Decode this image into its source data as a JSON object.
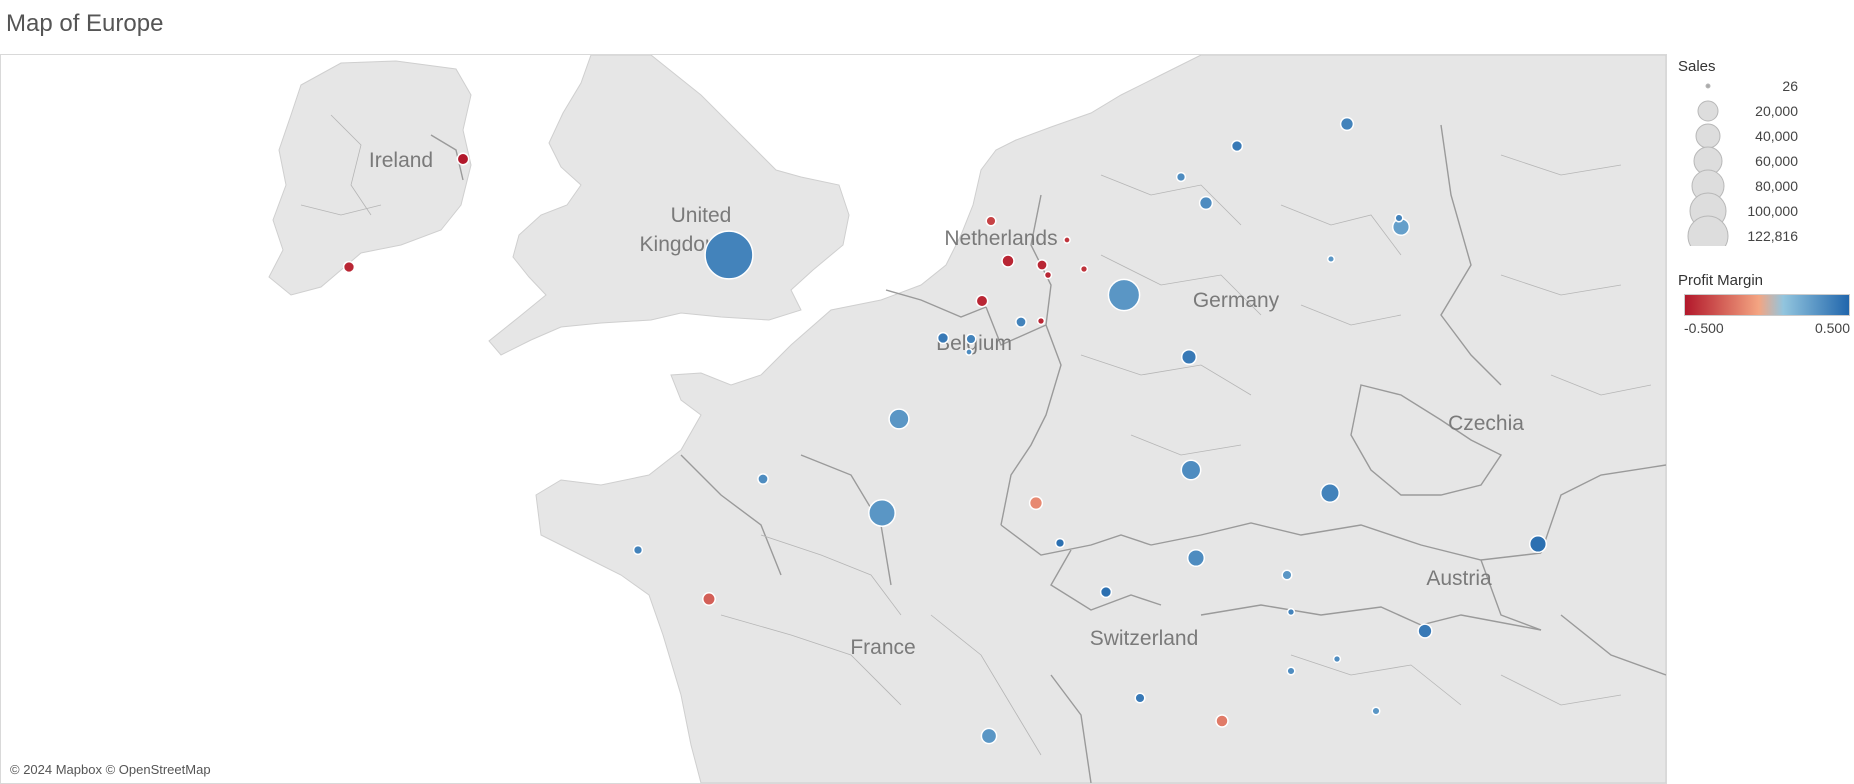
{
  "title": "Map of Europe",
  "attribution": "© 2024 Mapbox © OpenStreetMap",
  "colors": {
    "land": "#e6e6e6",
    "water": "#ffffff",
    "border": "#9a9a9a",
    "negative_strong": "#b2182b",
    "negative_light": "#f4a582",
    "positive_light": "#92c5de",
    "positive_strong": "#2166ac"
  },
  "country_labels": [
    "Ireland",
    "United Kingdom",
    "Netherlands",
    "Belgium",
    "Germany",
    "Czechia",
    "Austria",
    "Switzerland",
    "France"
  ],
  "legend": {
    "sales_title": "Sales",
    "sales_sizes": [
      "26",
      "20,000",
      "40,000",
      "60,000",
      "80,000",
      "100,000",
      "122,816"
    ],
    "profit_title": "Profit Margin",
    "profit_min": "-0.500",
    "profit_max": "0.500"
  },
  "marks": [
    {
      "sales": 122000,
      "margin": 0.35
    },
    {
      "sales": 47000,
      "margin": 0.25
    },
    {
      "sales": 32000,
      "margin": 0.25
    },
    {
      "sales": 15000,
      "margin": 0.3
    },
    {
      "sales": 16000,
      "margin": 0.25
    },
    {
      "sales": 10000,
      "margin": 0.3
    },
    {
      "sales": 13000,
      "margin": 0.35
    },
    {
      "sales": 10000,
      "margin": 0.45
    },
    {
      "sales": 10000,
      "margin": 0.2
    },
    {
      "sales": 7000,
      "margin": 0.4
    },
    {
      "sales": 6000,
      "margin": 0.4
    },
    {
      "sales": 8000,
      "margin": 0.25
    },
    {
      "sales": 5000,
      "margin": 0.35
    },
    {
      "sales": 5000,
      "margin": 0.3
    },
    {
      "sales": 5000,
      "margin": -0.1
    },
    {
      "sales": 4500,
      "margin": -0.25
    },
    {
      "sales": 4000,
      "margin": -0.15
    },
    {
      "sales": 4000,
      "margin": -0.45
    },
    {
      "sales": 3500,
      "margin": -0.45
    },
    {
      "sales": 3500,
      "margin": -0.5
    },
    {
      "sales": 3000,
      "margin": -0.45
    },
    {
      "sales": 2500,
      "margin": -0.45
    },
    {
      "sales": 2000,
      "margin": -0.35
    },
    {
      "sales": 3000,
      "margin": 0.4
    },
    {
      "sales": 3000,
      "margin": 0.45
    },
    {
      "sales": 3000,
      "margin": 0.4
    },
    {
      "sales": 2500,
      "margin": 0.35
    },
    {
      "sales": 2500,
      "margin": 0.3
    },
    {
      "sales": 2000,
      "margin": 0.25
    },
    {
      "sales": 2000,
      "margin": 0.35
    },
    {
      "sales": 2000,
      "margin": 0.4
    },
    {
      "sales": 1500,
      "margin": 0.3
    },
    {
      "sales": 1500,
      "margin": 0.45
    },
    {
      "sales": 1500,
      "margin": 0.35
    },
    {
      "sales": 800,
      "margin": 0.3
    },
    {
      "sales": 800,
      "margin": 0.35
    },
    {
      "sales": 800,
      "margin": 0.25
    },
    {
      "sales": 600,
      "margin": -0.45
    },
    {
      "sales": 500,
      "margin": -0.4
    },
    {
      "sales": 500,
      "margin": -0.45
    },
    {
      "sales": 500,
      "margin": 0.35
    },
    {
      "sales": 500,
      "margin": 0.3
    },
    {
      "sales": 400,
      "margin": 0.25
    },
    {
      "sales": 300,
      "margin": 0.3
    },
    {
      "sales": 300,
      "margin": -0.4
    }
  ]
}
